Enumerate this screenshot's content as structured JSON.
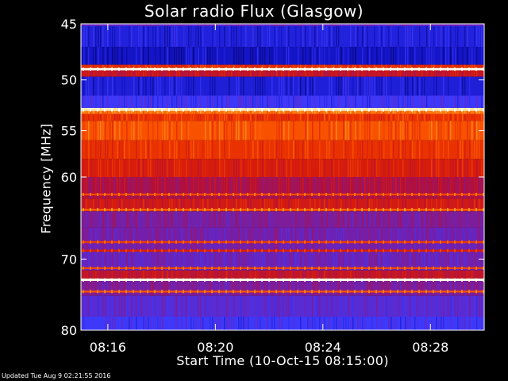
{
  "chart_data": {
    "type": "heatmap",
    "title": "Solar radio Flux (Glasgow)",
    "xlabel": "Start Time (10-Oct-15 08:15:00)",
    "ylabel": "Frequency [MHz]",
    "xlim": [
      "08:15:00",
      "08:30:00"
    ],
    "ylim": [
      45,
      80
    ],
    "y_scale": "log",
    "y_direction": "top-to-bottom increasing",
    "x_ticks": [
      "08:16",
      "08:20",
      "08:24",
      "08:28"
    ],
    "y_ticks": [
      45,
      50,
      55,
      60,
      70,
      80
    ],
    "colormap": [
      "#000040",
      "#1010c0",
      "#3a3aff",
      "#7020b0",
      "#b01040",
      "#e02000",
      "#ff6000",
      "#ffc040",
      "#fffff0"
    ],
    "frequency_bands_mhz": [
      {
        "from": 45.0,
        "to": 45.2,
        "intensity": 0.35
      },
      {
        "from": 45.2,
        "to": 47.0,
        "intensity": 0.18
      },
      {
        "from": 47.0,
        "to": 48.6,
        "intensity": 0.14
      },
      {
        "from": 48.6,
        "to": 48.9,
        "intensity": 0.65
      },
      {
        "from": 48.9,
        "to": 49.1,
        "intensity": 1.0
      },
      {
        "from": 49.1,
        "to": 49.7,
        "intensity": 0.55
      },
      {
        "from": 49.7,
        "to": 51.5,
        "intensity": 0.17
      },
      {
        "from": 51.5,
        "to": 52.7,
        "intensity": 0.26
      },
      {
        "from": 52.7,
        "to": 53.0,
        "intensity": 0.96
      },
      {
        "from": 53.0,
        "to": 53.3,
        "intensity": 0.78
      },
      {
        "from": 53.3,
        "to": 54.0,
        "intensity": 0.66
      },
      {
        "from": 54.0,
        "to": 56.0,
        "intensity": 0.72
      },
      {
        "from": 56.0,
        "to": 58.0,
        "intensity": 0.66
      },
      {
        "from": 58.0,
        "to": 60.0,
        "intensity": 0.6
      },
      {
        "from": 60.0,
        "to": 62.5,
        "intensity": 0.5
      },
      {
        "from": 62.5,
        "to": 64.0,
        "intensity": 0.58
      },
      {
        "from": 64.0,
        "to": 66.0,
        "intensity": 0.4
      },
      {
        "from": 66.0,
        "to": 69.0,
        "intensity": 0.38
      },
      {
        "from": 69.0,
        "to": 71.5,
        "intensity": 0.36
      },
      {
        "from": 71.5,
        "to": 72.6,
        "intensity": 0.55
      },
      {
        "from": 72.6,
        "to": 72.9,
        "intensity": 0.97
      },
      {
        "from": 72.9,
        "to": 75.0,
        "intensity": 0.4
      },
      {
        "from": 75.0,
        "to": 78.0,
        "intensity": 0.32
      },
      {
        "from": 78.0,
        "to": 80.0,
        "intensity": 0.26
      }
    ],
    "narrowband_lines_mhz": [
      {
        "mhz": 49.0,
        "intensity": 1.0
      },
      {
        "mhz": 52.9,
        "intensity": 0.95
      },
      {
        "mhz": 62.0,
        "intensity": 0.7
      },
      {
        "mhz": 63.8,
        "intensity": 0.75
      },
      {
        "mhz": 67.8,
        "intensity": 0.68
      },
      {
        "mhz": 68.9,
        "intensity": 0.62
      },
      {
        "mhz": 71.2,
        "intensity": 0.7
      },
      {
        "mhz": 72.8,
        "intensity": 1.0
      },
      {
        "mhz": 74.4,
        "intensity": 0.72
      }
    ]
  },
  "footer": {
    "updated": "Updated Tue Aug  9 02:21:55 2016"
  }
}
